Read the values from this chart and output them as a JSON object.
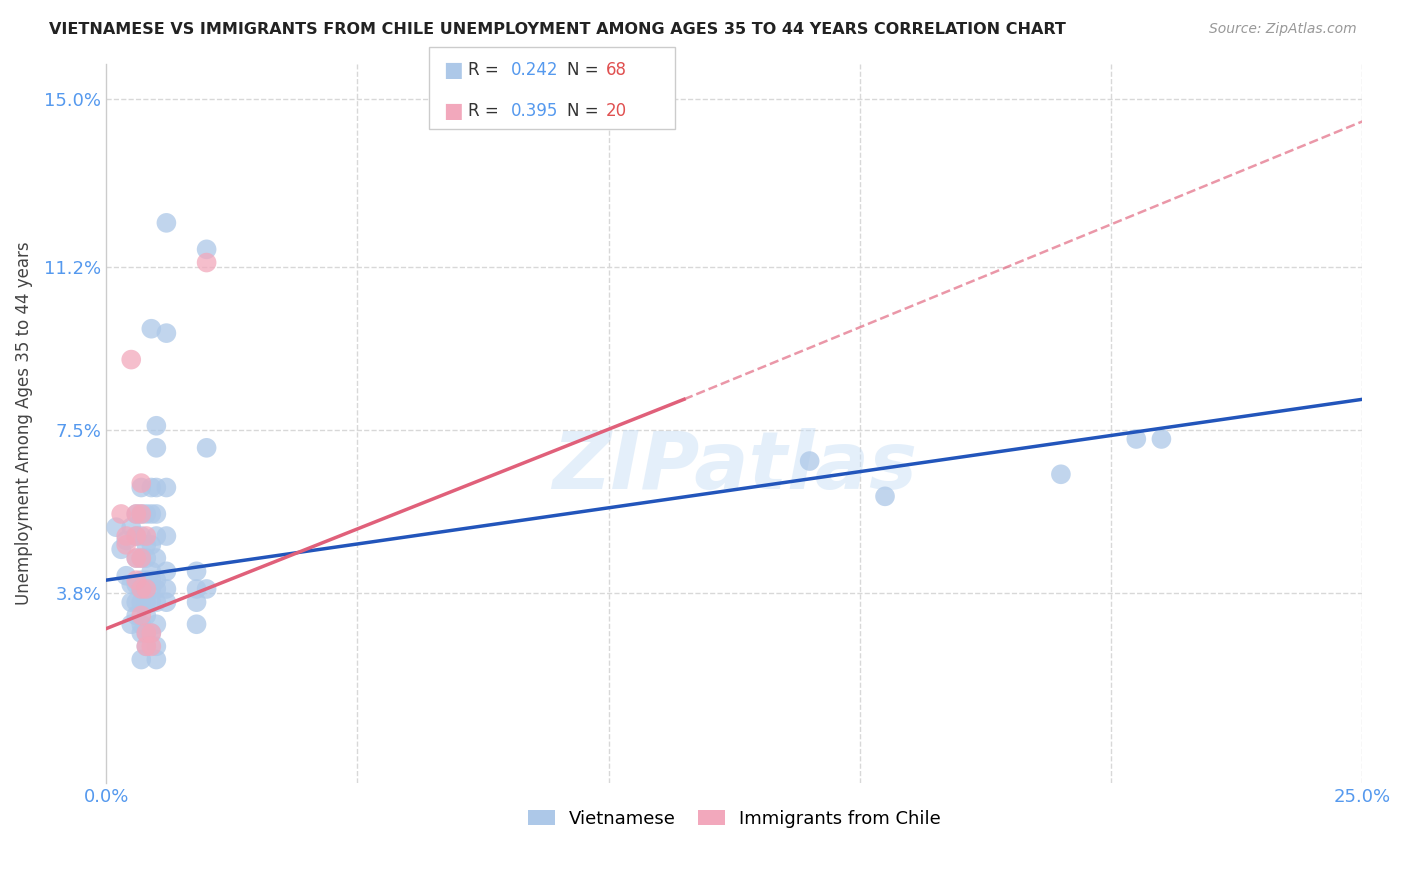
{
  "title": "VIETNAMESE VS IMMIGRANTS FROM CHILE UNEMPLOYMENT AMONG AGES 35 TO 44 YEARS CORRELATION CHART",
  "source": "Source: ZipAtlas.com",
  "ylabel": "Unemployment Among Ages 35 to 44 years",
  "xlim": [
    0.0,
    0.25
  ],
  "ylim": [
    -0.005,
    0.158
  ],
  "yticks": [
    0.038,
    0.075,
    0.112,
    0.15
  ],
  "ytick_labels": [
    "3.8%",
    "7.5%",
    "11.2%",
    "15.0%"
  ],
  "xticks": [
    0.0,
    0.05,
    0.1,
    0.15,
    0.2,
    0.25
  ],
  "xtick_labels": [
    "0.0%",
    "",
    "",
    "",
    "",
    "25.0%"
  ],
  "background_color": "#ffffff",
  "grid_color": "#d8d8d8",
  "watermark": "ZIPatlas",
  "viet_color": "#adc8e8",
  "chile_color": "#f2a8bc",
  "viet_line_color": "#2255bb",
  "chile_line_color": "#e0607a",
  "viet_scatter": [
    [
      0.002,
      0.053
    ],
    [
      0.003,
      0.048
    ],
    [
      0.004,
      0.05
    ],
    [
      0.004,
      0.042
    ],
    [
      0.005,
      0.053
    ],
    [
      0.005,
      0.04
    ],
    [
      0.005,
      0.036
    ],
    [
      0.005,
      0.031
    ],
    [
      0.006,
      0.056
    ],
    [
      0.006,
      0.051
    ],
    [
      0.006,
      0.046
    ],
    [
      0.006,
      0.04
    ],
    [
      0.006,
      0.036
    ],
    [
      0.006,
      0.033
    ],
    [
      0.007,
      0.062
    ],
    [
      0.007,
      0.056
    ],
    [
      0.007,
      0.051
    ],
    [
      0.007,
      0.046
    ],
    [
      0.007,
      0.041
    ],
    [
      0.007,
      0.039
    ],
    [
      0.007,
      0.036
    ],
    [
      0.007,
      0.031
    ],
    [
      0.007,
      0.029
    ],
    [
      0.007,
      0.023
    ],
    [
      0.008,
      0.056
    ],
    [
      0.008,
      0.049
    ],
    [
      0.008,
      0.046
    ],
    [
      0.008,
      0.041
    ],
    [
      0.008,
      0.036
    ],
    [
      0.008,
      0.033
    ],
    [
      0.008,
      0.029
    ],
    [
      0.008,
      0.026
    ],
    [
      0.009,
      0.098
    ],
    [
      0.009,
      0.062
    ],
    [
      0.009,
      0.056
    ],
    [
      0.009,
      0.049
    ],
    [
      0.009,
      0.043
    ],
    [
      0.009,
      0.041
    ],
    [
      0.009,
      0.039
    ],
    [
      0.009,
      0.036
    ],
    [
      0.009,
      0.029
    ],
    [
      0.01,
      0.076
    ],
    [
      0.01,
      0.071
    ],
    [
      0.01,
      0.062
    ],
    [
      0.01,
      0.056
    ],
    [
      0.01,
      0.051
    ],
    [
      0.01,
      0.046
    ],
    [
      0.01,
      0.041
    ],
    [
      0.01,
      0.039
    ],
    [
      0.01,
      0.036
    ],
    [
      0.01,
      0.031
    ],
    [
      0.01,
      0.026
    ],
    [
      0.01,
      0.023
    ],
    [
      0.012,
      0.122
    ],
    [
      0.012,
      0.097
    ],
    [
      0.012,
      0.062
    ],
    [
      0.012,
      0.051
    ],
    [
      0.012,
      0.043
    ],
    [
      0.012,
      0.039
    ],
    [
      0.012,
      0.036
    ],
    [
      0.018,
      0.043
    ],
    [
      0.018,
      0.039
    ],
    [
      0.018,
      0.036
    ],
    [
      0.018,
      0.031
    ],
    [
      0.02,
      0.116
    ],
    [
      0.02,
      0.071
    ],
    [
      0.02,
      0.039
    ],
    [
      0.14,
      0.068
    ],
    [
      0.155,
      0.06
    ],
    [
      0.19,
      0.065
    ],
    [
      0.205,
      0.073
    ],
    [
      0.21,
      0.073
    ]
  ],
  "chile_scatter": [
    [
      0.003,
      0.056
    ],
    [
      0.004,
      0.051
    ],
    [
      0.004,
      0.049
    ],
    [
      0.005,
      0.091
    ],
    [
      0.006,
      0.056
    ],
    [
      0.006,
      0.051
    ],
    [
      0.006,
      0.046
    ],
    [
      0.006,
      0.041
    ],
    [
      0.007,
      0.063
    ],
    [
      0.007,
      0.056
    ],
    [
      0.007,
      0.046
    ],
    [
      0.007,
      0.039
    ],
    [
      0.007,
      0.033
    ],
    [
      0.008,
      0.051
    ],
    [
      0.008,
      0.039
    ],
    [
      0.008,
      0.029
    ],
    [
      0.008,
      0.026
    ],
    [
      0.009,
      0.029
    ],
    [
      0.009,
      0.026
    ],
    [
      0.02,
      0.113
    ]
  ],
  "viet_regression": {
    "x_start": 0.0,
    "x_end": 0.25,
    "y_start": 0.041,
    "y_end": 0.082
  },
  "chile_regression_solid": {
    "x_start": 0.0,
    "x_end": 0.115,
    "y_start": 0.03,
    "y_end": 0.082
  },
  "chile_regression_dashed": {
    "x_start": 0.115,
    "x_end": 0.25,
    "y_start": 0.082,
    "y_end": 0.145
  }
}
